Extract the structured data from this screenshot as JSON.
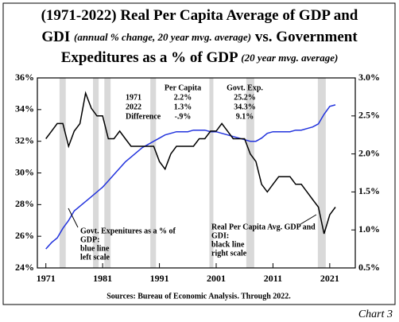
{
  "chart_data": {
    "type": "line",
    "title_lines": [
      [
        "(1971-2022) Real Per Capita Average of GDP and"
      ],
      [
        "GDI ",
        "(annual % change, 20 year mvg. average)",
        " vs. Government"
      ],
      [
        "Expeditures as a % of GDP ",
        "(20 year mvg. average)"
      ]
    ],
    "x": [
      1971,
      1972,
      1973,
      1974,
      1975,
      1976,
      1977,
      1978,
      1979,
      1980,
      1981,
      1982,
      1983,
      1984,
      1985,
      1986,
      1987,
      1988,
      1989,
      1990,
      1991,
      1992,
      1993,
      1994,
      1995,
      1996,
      1997,
      1998,
      1999,
      2000,
      2001,
      2002,
      2003,
      2004,
      2005,
      2006,
      2007,
      2008,
      2009,
      2010,
      2011,
      2012,
      2013,
      2014,
      2015,
      2016,
      2017,
      2018,
      2019,
      2020,
      2021,
      2022
    ],
    "series": [
      {
        "name": "Govt. Expenitures as a % of GDP",
        "color": "#2233dd",
        "axis": "y",
        "values": [
          25.2,
          25.6,
          25.9,
          26.5,
          27.0,
          27.6,
          27.9,
          28.2,
          28.5,
          28.8,
          29.1,
          29.5,
          29.9,
          30.3,
          30.7,
          31.0,
          31.3,
          31.6,
          31.8,
          32.0,
          32.2,
          32.4,
          32.5,
          32.6,
          32.6,
          32.6,
          32.7,
          32.7,
          32.7,
          32.6,
          32.6,
          32.5,
          32.4,
          32.3,
          32.2,
          32.1,
          32.0,
          32.0,
          32.2,
          32.5,
          32.6,
          32.6,
          32.6,
          32.6,
          32.7,
          32.7,
          32.8,
          32.9,
          33.1,
          33.7,
          34.2,
          34.3
        ]
      },
      {
        "name": "Real Per Capita Avg. GDP and GDI",
        "color": "#000000",
        "axis": "y2",
        "values": [
          2.2,
          2.3,
          2.4,
          2.4,
          2.1,
          2.3,
          2.4,
          2.8,
          2.6,
          2.5,
          2.5,
          2.2,
          2.2,
          2.3,
          2.2,
          2.1,
          2.1,
          2.1,
          2.1,
          2.1,
          1.9,
          1.8,
          2.0,
          2.1,
          2.1,
          2.1,
          2.1,
          2.2,
          2.2,
          2.3,
          2.3,
          2.4,
          2.3,
          2.2,
          2.2,
          2.2,
          2.0,
          1.9,
          1.6,
          1.5,
          1.6,
          1.7,
          1.7,
          1.7,
          1.6,
          1.6,
          1.5,
          1.4,
          1.3,
          0.95,
          1.2,
          1.3
        ]
      }
    ],
    "shaded": [
      [
        1973.4,
        1974.5
      ],
      [
        1979.3,
        1980.3
      ],
      [
        1981.3,
        1982.4
      ],
      [
        1989.4,
        1990.4
      ],
      [
        1999.8,
        2000.5
      ],
      [
        2006.3,
        2007.7
      ],
      [
        2018.9,
        2020.3
      ]
    ],
    "shade_color": "#d9d9d9",
    "xlim": [
      1969.5,
      2025.5
    ],
    "xticks": [
      1971,
      1981,
      1991,
      2001,
      2011,
      2021
    ],
    "ylim": [
      24,
      36
    ],
    "yticks": [
      {
        "value": 24,
        "label": "24%"
      },
      {
        "value": 26,
        "label": "26%"
      },
      {
        "value": 28,
        "label": "28%"
      },
      {
        "value": 30,
        "label": "30%"
      },
      {
        "value": 32,
        "label": "32%"
      },
      {
        "value": 34,
        "label": "34%"
      },
      {
        "value": 36,
        "label": "36%"
      }
    ],
    "y2lim": [
      0.5,
      3.0
    ],
    "y2ticks": [
      {
        "value": 0.5,
        "label": "0.5%"
      },
      {
        "value": 1.0,
        "label": "1.0%"
      },
      {
        "value": 1.5,
        "label": "1.5%"
      },
      {
        "value": 2.0,
        "label": "2.0%"
      },
      {
        "value": 2.5,
        "label": "2.5%"
      },
      {
        "value": 3.0,
        "label": "3.0%"
      }
    ],
    "table": {
      "header": [
        "Per Capita",
        "Govt. Exp."
      ],
      "rows": [
        [
          "1971",
          "2.2%",
          "25.2%"
        ],
        [
          "2022",
          "1.3%",
          "34.3%"
        ],
        [
          "Difference",
          "-.9%",
          "9.1%"
        ]
      ]
    },
    "left_note": [
      "Govt. Expenitures as a % of",
      "GDP:",
      "blue line",
      "left scale"
    ],
    "right_note": [
      "Real Per Capita Avg. GDP and",
      "GDI:",
      "black line",
      "right scale"
    ],
    "source": "Sources: Bureau of Economic Analysis. Through 2022.",
    "label": "Chart 3"
  }
}
